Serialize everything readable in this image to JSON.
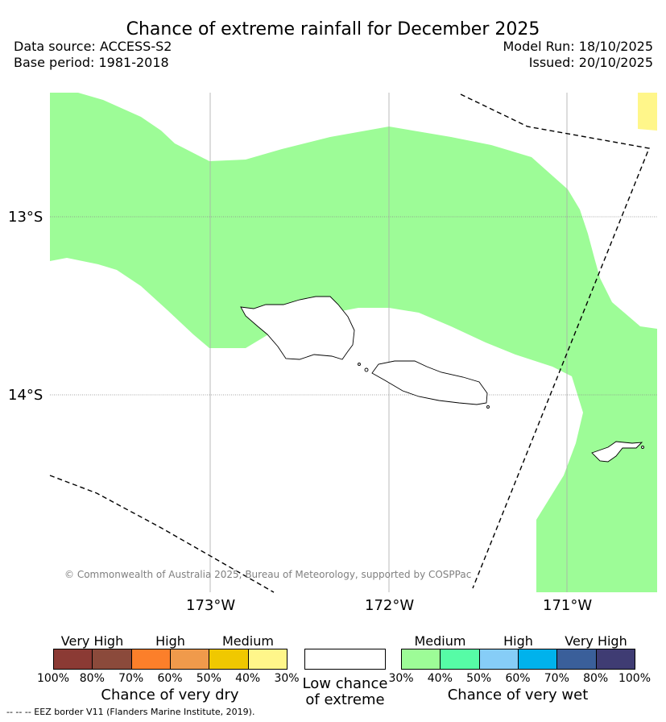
{
  "title": "Chance of extreme rainfall for December 2025",
  "data_source": "Data source: ACCESS-S2",
  "base_period": "Base period: 1981-2018",
  "model_run": "Model Run: 18/10/2025",
  "issued": "Issued: 20/10/2025",
  "map": {
    "lat_labels": [
      "13°S",
      "14°S"
    ],
    "lon_labels": [
      "173°W",
      "172°W",
      "171°W"
    ],
    "copyright": "© Commonwealth of Australia 2025, Bureau of Meteorology, supported by COSPPac",
    "colors": {
      "medium_wet": "#9dfc97",
      "medium_dry": "#fff68a",
      "land_outline": "#000000",
      "eez_line": "#000000"
    }
  },
  "legend": {
    "dry": {
      "headers": [
        "Very High",
        "High",
        "Medium"
      ],
      "ticks": [
        "100%",
        "80%",
        "70%",
        "60%",
        "50%",
        "40%",
        "30%"
      ],
      "colors": [
        "#8b3a34",
        "#8b4a3b",
        "#fc7f2a",
        "#f09a4b",
        "#f0c800",
        "#fff68a"
      ],
      "title": "Chance of very dry"
    },
    "low": {
      "color": "#ffffff",
      "title_line1": "Low chance",
      "title_line2": "of extreme"
    },
    "wet": {
      "headers": [
        "Medium",
        "High",
        "Very High"
      ],
      "ticks": [
        "30%",
        "40%",
        "50%",
        "60%",
        "70%",
        "80%",
        "100%"
      ],
      "colors": [
        "#9dfc97",
        "#56fca6",
        "#86cdf7",
        "#00b2ec",
        "#3a5f9a",
        "#3f3c73"
      ],
      "title": "Chance of very wet"
    }
  },
  "footer": "--  --  -- EEZ border V11 (Flanders Marine Institute, 2019)."
}
